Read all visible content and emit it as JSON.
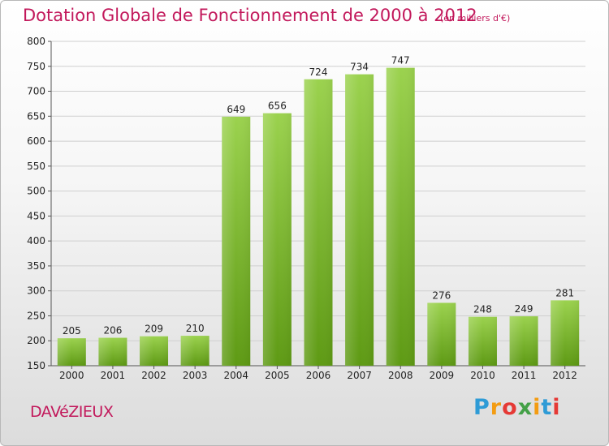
{
  "title": "Dotation Globale de Fonctionnement de 2000 à 2012",
  "unit": "(en milliers d'€)",
  "commune": "DAVéZIEUX",
  "logo": {
    "letters": [
      "P",
      "r",
      "o",
      "x",
      "i",
      "t",
      "i"
    ],
    "colors": [
      "#2e9bd6",
      "#f39c12",
      "#e53935",
      "#43a047",
      "#f39c12",
      "#2e9bd6",
      "#e53935"
    ]
  },
  "colors": {
    "accent": "#c2185b",
    "bar_light": "#9bd24e",
    "bar_dark": "#5e9a14",
    "grid": "#cfcfcf"
  },
  "chart_data": {
    "type": "bar",
    "categories": [
      "2000",
      "2001",
      "2002",
      "2003",
      "2004",
      "2005",
      "2006",
      "2007",
      "2008",
      "2009",
      "2010",
      "2011",
      "2012"
    ],
    "values": [
      205,
      206,
      209,
      210,
      649,
      656,
      724,
      734,
      747,
      276,
      248,
      249,
      281
    ],
    "title": "Dotation Globale de Fonctionnement de 2000 à 2012",
    "xlabel": "",
    "ylabel": "",
    "ylim": [
      150,
      800
    ],
    "yticks": [
      150,
      200,
      250,
      300,
      350,
      400,
      450,
      500,
      550,
      600,
      650,
      700,
      750,
      800
    ],
    "grid": true,
    "data_labels": true
  }
}
